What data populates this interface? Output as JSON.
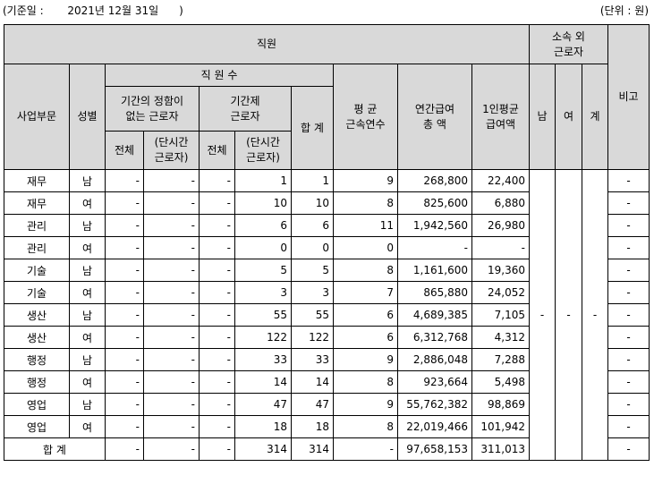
{
  "header_line": {
    "date_label": "(기준일 :       2021년 12월 31일      )",
    "unit_label": "(단위 : 원)"
  },
  "table_header": {
    "staff": "직원",
    "outside": "소속 외\n근로자",
    "remarks": "비고",
    "division": "사업부문",
    "gender": "성별",
    "headcount": "직 원 수",
    "permanent": "기간의 정함이\n없는 근로자",
    "contract": "기간제\n근로자",
    "total_sum": "합 계",
    "avg_tenure": "평 균\n근속연수",
    "annual_pay": "연간급여\n총 액",
    "per_capita": "1인평균\n급여액",
    "male": "남",
    "female": "여",
    "sum": "계",
    "all1": "전체",
    "part1": "(단시간\n근로자)",
    "all2": "전체",
    "part2": "(단시간\n근로자)"
  },
  "rows": [
    {
      "division": "재무",
      "gender": "남",
      "p_all": "-",
      "p_part": "-",
      "c_all": "-",
      "c_part": "1",
      "total": "1",
      "tenure": "9",
      "pay": "268,800",
      "avg": "22,400",
      "remark": "-"
    },
    {
      "division": "재무",
      "gender": "여",
      "p_all": "-",
      "p_part": "-",
      "c_all": "-",
      "c_part": "10",
      "total": "10",
      "tenure": "8",
      "pay": "825,600",
      "avg": "6,880",
      "remark": "-"
    },
    {
      "division": "관리",
      "gender": "남",
      "p_all": "-",
      "p_part": "-",
      "c_all": "-",
      "c_part": "6",
      "total": "6",
      "tenure": "11",
      "pay": "1,942,560",
      "avg": "26,980",
      "remark": "-"
    },
    {
      "division": "관리",
      "gender": "여",
      "p_all": "-",
      "p_part": "-",
      "c_all": "-",
      "c_part": "0",
      "total": "0",
      "tenure": "0",
      "pay": "-",
      "avg": "-",
      "remark": "-"
    },
    {
      "division": "기술",
      "gender": "남",
      "p_all": "-",
      "p_part": "-",
      "c_all": "-",
      "c_part": "5",
      "total": "5",
      "tenure": "8",
      "pay": "1,161,600",
      "avg": "19,360",
      "remark": "-"
    },
    {
      "division": "기술",
      "gender": "여",
      "p_all": "-",
      "p_part": "-",
      "c_all": "-",
      "c_part": "3",
      "total": "3",
      "tenure": "7",
      "pay": "865,880",
      "avg": "24,052",
      "remark": "-"
    },
    {
      "division": "생산",
      "gender": "남",
      "p_all": "-",
      "p_part": "-",
      "c_all": "-",
      "c_part": "55",
      "total": "55",
      "tenure": "6",
      "pay": "4,689,385",
      "avg": "7,105",
      "remark": "-"
    },
    {
      "division": "생산",
      "gender": "여",
      "p_all": "-",
      "p_part": "-",
      "c_all": "-",
      "c_part": "122",
      "total": "122",
      "tenure": "6",
      "pay": "6,312,768",
      "avg": "4,312",
      "remark": "-"
    },
    {
      "division": "행정",
      "gender": "남",
      "p_all": "-",
      "p_part": "-",
      "c_all": "-",
      "c_part": "33",
      "total": "33",
      "tenure": "9",
      "pay": "2,886,048",
      "avg": "7,288",
      "remark": "-"
    },
    {
      "division": "행정",
      "gender": "여",
      "p_all": "-",
      "p_part": "-",
      "c_all": "-",
      "c_part": "14",
      "total": "14",
      "tenure": "8",
      "pay": "923,664",
      "avg": "5,498",
      "remark": "-"
    },
    {
      "division": "영업",
      "gender": "남",
      "p_all": "-",
      "p_part": "-",
      "c_all": "-",
      "c_part": "47",
      "total": "47",
      "tenure": "9",
      "pay": "55,762,382",
      "avg": "98,869",
      "remark": "-"
    },
    {
      "division": "영업",
      "gender": "여",
      "p_all": "-",
      "p_part": "-",
      "c_all": "-",
      "c_part": "18",
      "total": "18",
      "tenure": "8",
      "pay": "22,019,466",
      "avg": "101,942",
      "remark": "-"
    }
  ],
  "outside_values": {
    "male": "-",
    "female": "-",
    "sum": "-"
  },
  "total_row": {
    "label": "합 계",
    "p_all": "-",
    "p_part": "-",
    "c_all": "-",
    "c_part": "314",
    "total": "314",
    "tenure": "-",
    "pay": "97,658,153",
    "avg": "311,013",
    "remark": "-"
  }
}
